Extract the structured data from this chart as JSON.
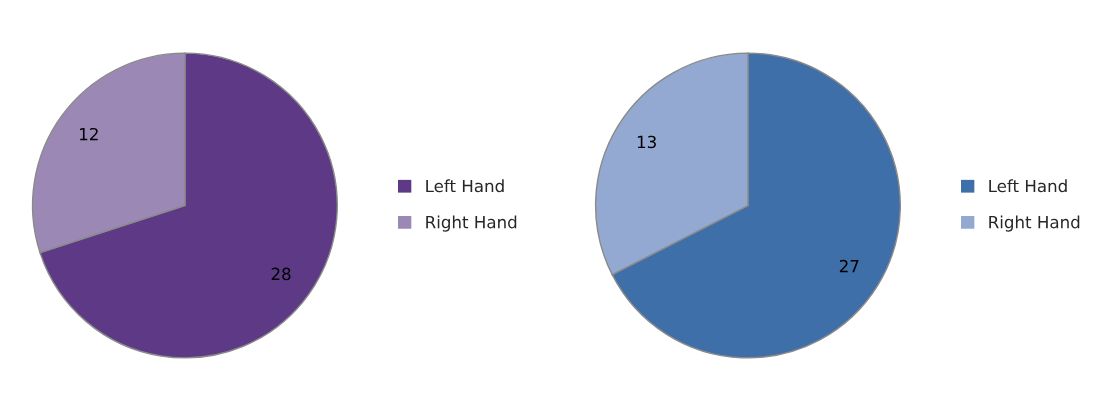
{
  "chart_data": [
    {
      "type": "pie",
      "categories": [
        "Left Hand",
        "Right Hand"
      ],
      "values": [
        28,
        12
      ],
      "colors": [
        "#5e3a86",
        "#9c88b5"
      ],
      "data_labels": true,
      "legend": "right"
    },
    {
      "type": "pie",
      "categories": [
        "Left Hand",
        "Right Hand"
      ],
      "values": [
        27,
        13
      ],
      "colors": [
        "#3e6fa8",
        "#93a9d1"
      ],
      "data_labels": true,
      "legend": "right"
    }
  ]
}
